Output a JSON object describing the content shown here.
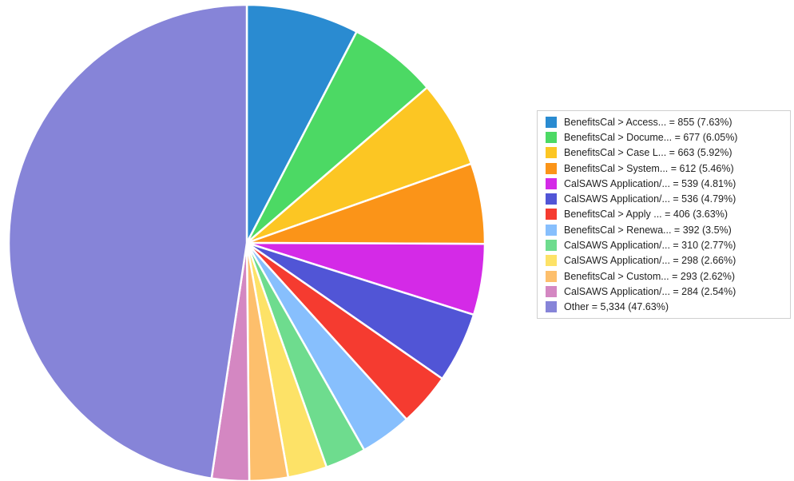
{
  "chart_data": {
    "type": "pie",
    "slices": [
      {
        "label": "BenefitsCal > Access...",
        "value": 855,
        "percent": "7.63%",
        "color": "#2a8bd1"
      },
      {
        "label": "BenefitsCal > Docume...",
        "value": 677,
        "percent": "6.05%",
        "color": "#4cd964"
      },
      {
        "label": "BenefitsCal > Case L...",
        "value": 663,
        "percent": "5.92%",
        "color": "#fcc623"
      },
      {
        "label": "BenefitsCal > System...",
        "value": 612,
        "percent": "5.46%",
        "color": "#fb9418"
      },
      {
        "label": "CalSAWS Application/...",
        "value": 539,
        "percent": "4.81%",
        "color": "#d42ae7"
      },
      {
        "label": "CalSAWS Application/...",
        "value": 536,
        "percent": "4.79%",
        "color": "#5155d6"
      },
      {
        "label": "BenefitsCal > Apply ...",
        "value": 406,
        "percent": "3.63%",
        "color": "#f53b30"
      },
      {
        "label": "BenefitsCal > Renewa...",
        "value": 392,
        "percent": "3.5%",
        "color": "#87bffd"
      },
      {
        "label": "CalSAWS Application/...",
        "value": 310,
        "percent": "2.77%",
        "color": "#6edc8e"
      },
      {
        "label": "CalSAWS Application/...",
        "value": 298,
        "percent": "2.66%",
        "color": "#fde267"
      },
      {
        "label": "BenefitsCal > Custom...",
        "value": 293,
        "percent": "2.62%",
        "color": "#fdbf6c"
      },
      {
        "label": "CalSAWS Application/...",
        "value": 284,
        "percent": "2.54%",
        "color": "#d487c2"
      },
      {
        "label": "Other",
        "value": 5334,
        "value_text": "5,334",
        "percent": "47.63%",
        "color": "#8684d8"
      }
    ],
    "legend_position": "right"
  }
}
